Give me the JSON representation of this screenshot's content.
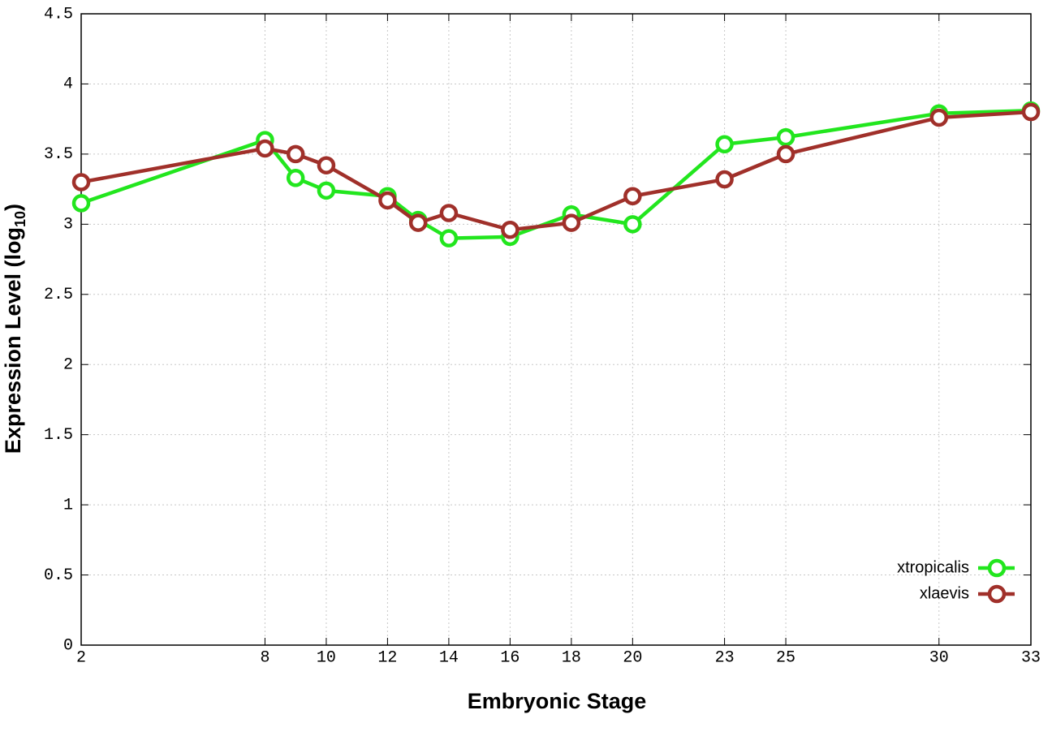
{
  "chart_data": {
    "type": "line",
    "x_label": "Embryonic Stage",
    "y_label": [
      "Expression Level (log",
      "10",
      ")"
    ],
    "x": [
      2,
      8,
      9,
      10,
      12,
      13,
      14,
      16,
      18,
      20,
      23,
      25,
      30,
      33
    ],
    "series": [
      {
        "name": "xtropicalis",
        "color": "#22e61e",
        "values": [
          3.15,
          3.6,
          3.33,
          3.24,
          3.2,
          3.03,
          2.9,
          2.91,
          3.07,
          3.0,
          3.57,
          3.62,
          3.79,
          3.81
        ]
      },
      {
        "name": "xlaevis",
        "color": "#a0302a",
        "values": [
          3.3,
          3.54,
          3.5,
          3.42,
          3.17,
          3.01,
          3.08,
          2.96,
          3.01,
          3.2,
          3.32,
          3.5,
          3.76,
          3.8
        ]
      }
    ],
    "xlim": [
      2,
      33
    ],
    "xticks": [
      2,
      8,
      10,
      12,
      14,
      16,
      18,
      20,
      23,
      25,
      30,
      33
    ],
    "ylim": [
      0,
      4.5
    ],
    "yticks": [
      0,
      0.5,
      1,
      1.5,
      2,
      2.5,
      3,
      3.5,
      4,
      4.5
    ],
    "grid": true,
    "legend": "bottom-right"
  }
}
